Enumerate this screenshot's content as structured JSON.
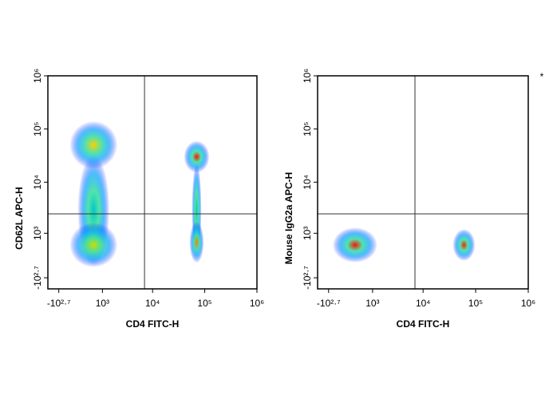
{
  "note_mark": "*",
  "chart_data": [
    {
      "type": "scatter",
      "xlabel": "CD4 FITC-H",
      "ylabel": "CD62L APC-H",
      "xlim": [
        -970,
        1000000
      ],
      "ylim": [
        -970,
        1000000
      ],
      "xticks": [
        {
          "value": -501,
          "label": "-10²·⁷"
        },
        {
          "value": 1000,
          "label": "10³"
        },
        {
          "value": 10000,
          "label": "10⁴"
        },
        {
          "value": 100000,
          "label": "10⁵"
        },
        {
          "value": 1000000,
          "label": "10⁶"
        }
      ],
      "yticks": [
        {
          "value": -501,
          "label": "-10²·⁷"
        },
        {
          "value": 1000,
          "label": "10³"
        },
        {
          "value": 10000,
          "label": "10⁴"
        },
        {
          "value": 100000,
          "label": "10⁵"
        },
        {
          "value": 1000000,
          "label": "10⁶"
        }
      ],
      "gate_x": 7000,
      "gate_y": 2500,
      "series": [
        {
          "color": "#00c8c8",
          "x": [
            600
          ],
          "values": [
            3000
          ]
        },
        {
          "color": "#ffd000",
          "x": [
            600
          ],
          "values": [
            50000
          ]
        },
        {
          "color": "#c8e000",
          "x": [
            600
          ],
          "values": [
            500
          ]
        },
        {
          "color": "#00d0a0",
          "x": [
            70000
          ],
          "values": [
            3000
          ]
        },
        {
          "color": "#ff1000",
          "x": [
            70000
          ],
          "values": [
            30000
          ]
        },
        {
          "color": "#ff8000",
          "x": [
            70000
          ],
          "values": [
            600
          ]
        }
      ]
    },
    {
      "type": "scatter",
      "xlabel": "CD4 FITC-H",
      "ylabel": "Mouse IgG2a APC-H",
      "xlim": [
        -970,
        1000000
      ],
      "ylim": [
        -970,
        1000000
      ],
      "xticks": [
        {
          "value": -501,
          "label": "-10²·⁷"
        },
        {
          "value": 1000,
          "label": "10³"
        },
        {
          "value": 10000,
          "label": "10⁴"
        },
        {
          "value": 100000,
          "label": "10⁵"
        },
        {
          "value": 1000000,
          "label": "10⁶"
        }
      ],
      "yticks": [
        {
          "value": -501,
          "label": "-10²·⁷"
        },
        {
          "value": 1000,
          "label": "10³"
        },
        {
          "value": 10000,
          "label": "10⁴"
        },
        {
          "value": 100000,
          "label": "10⁵"
        },
        {
          "value": 1000000,
          "label": "10⁶"
        }
      ],
      "gate_x": 7000,
      "gate_y": 2500,
      "series": [
        {
          "color": "#ff1000",
          "x": [
            300
          ],
          "values": [
            500
          ]
        },
        {
          "color": "#ff2000",
          "x": [
            60000
          ],
          "values": [
            500
          ]
        }
      ]
    }
  ]
}
